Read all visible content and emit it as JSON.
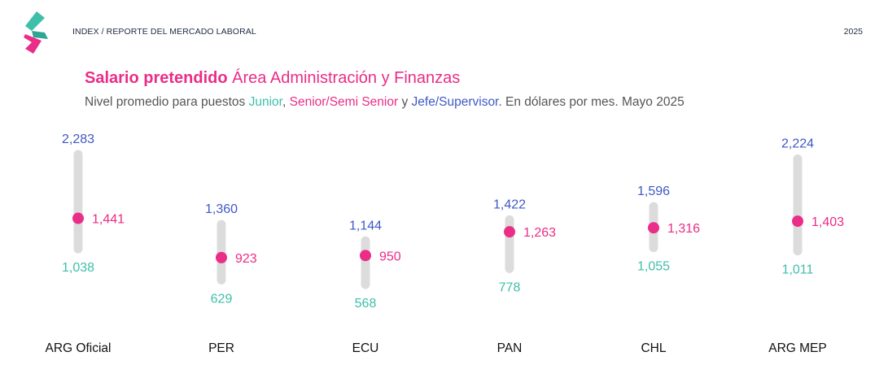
{
  "header": {
    "breadcrumb": "INDEX / REPORTE DEL MERCADO LABORAL",
    "year": "2025"
  },
  "title": {
    "bold": "Salario pretendido",
    "rest": "Área Administración y Finanzas"
  },
  "subtitle": {
    "part1": "Nivel promedio para puestos ",
    "junior": "Junior",
    "sep1": ", ",
    "senior": "Senior/Semi Senior",
    "sep2": " y ",
    "jefe": "Jefe/Supervisor",
    "part2": ". En dólares por mes. Mayo 2025"
  },
  "colors": {
    "brand_pink": "#ea2d87",
    "brand_teal": "#3ebfaa",
    "junior": "#3ebfaa",
    "senior": "#ea2d87",
    "jefe": "#3f59c4",
    "range_bar": "#dcdcdc",
    "text": "#555555"
  },
  "chart_data": {
    "type": "range",
    "title": "",
    "categories": [
      "ARG Oficial",
      "PER",
      "ECU",
      "PAN",
      "CHL",
      "ARG MEP"
    ],
    "series": [
      {
        "name": "Junior",
        "values": [
          1038,
          629,
          568,
          778,
          1055,
          1011
        ],
        "labels": [
          "1,038",
          "629",
          "568",
          "778",
          "1,055",
          "1,011"
        ]
      },
      {
        "name": "Senior/Semi Senior",
        "values": [
          1441,
          923,
          950,
          1263,
          1316,
          1403
        ],
        "labels": [
          "1,441",
          "923",
          "950",
          "1,263",
          "1,316",
          "1,403"
        ]
      },
      {
        "name": "Jefe/Supervisor",
        "values": [
          2283,
          1360,
          1144,
          1422,
          1596,
          2224
        ],
        "labels": [
          "2,283",
          "1,360",
          "1,144",
          "1,422",
          "1,596",
          "2,224"
        ]
      }
    ]
  }
}
